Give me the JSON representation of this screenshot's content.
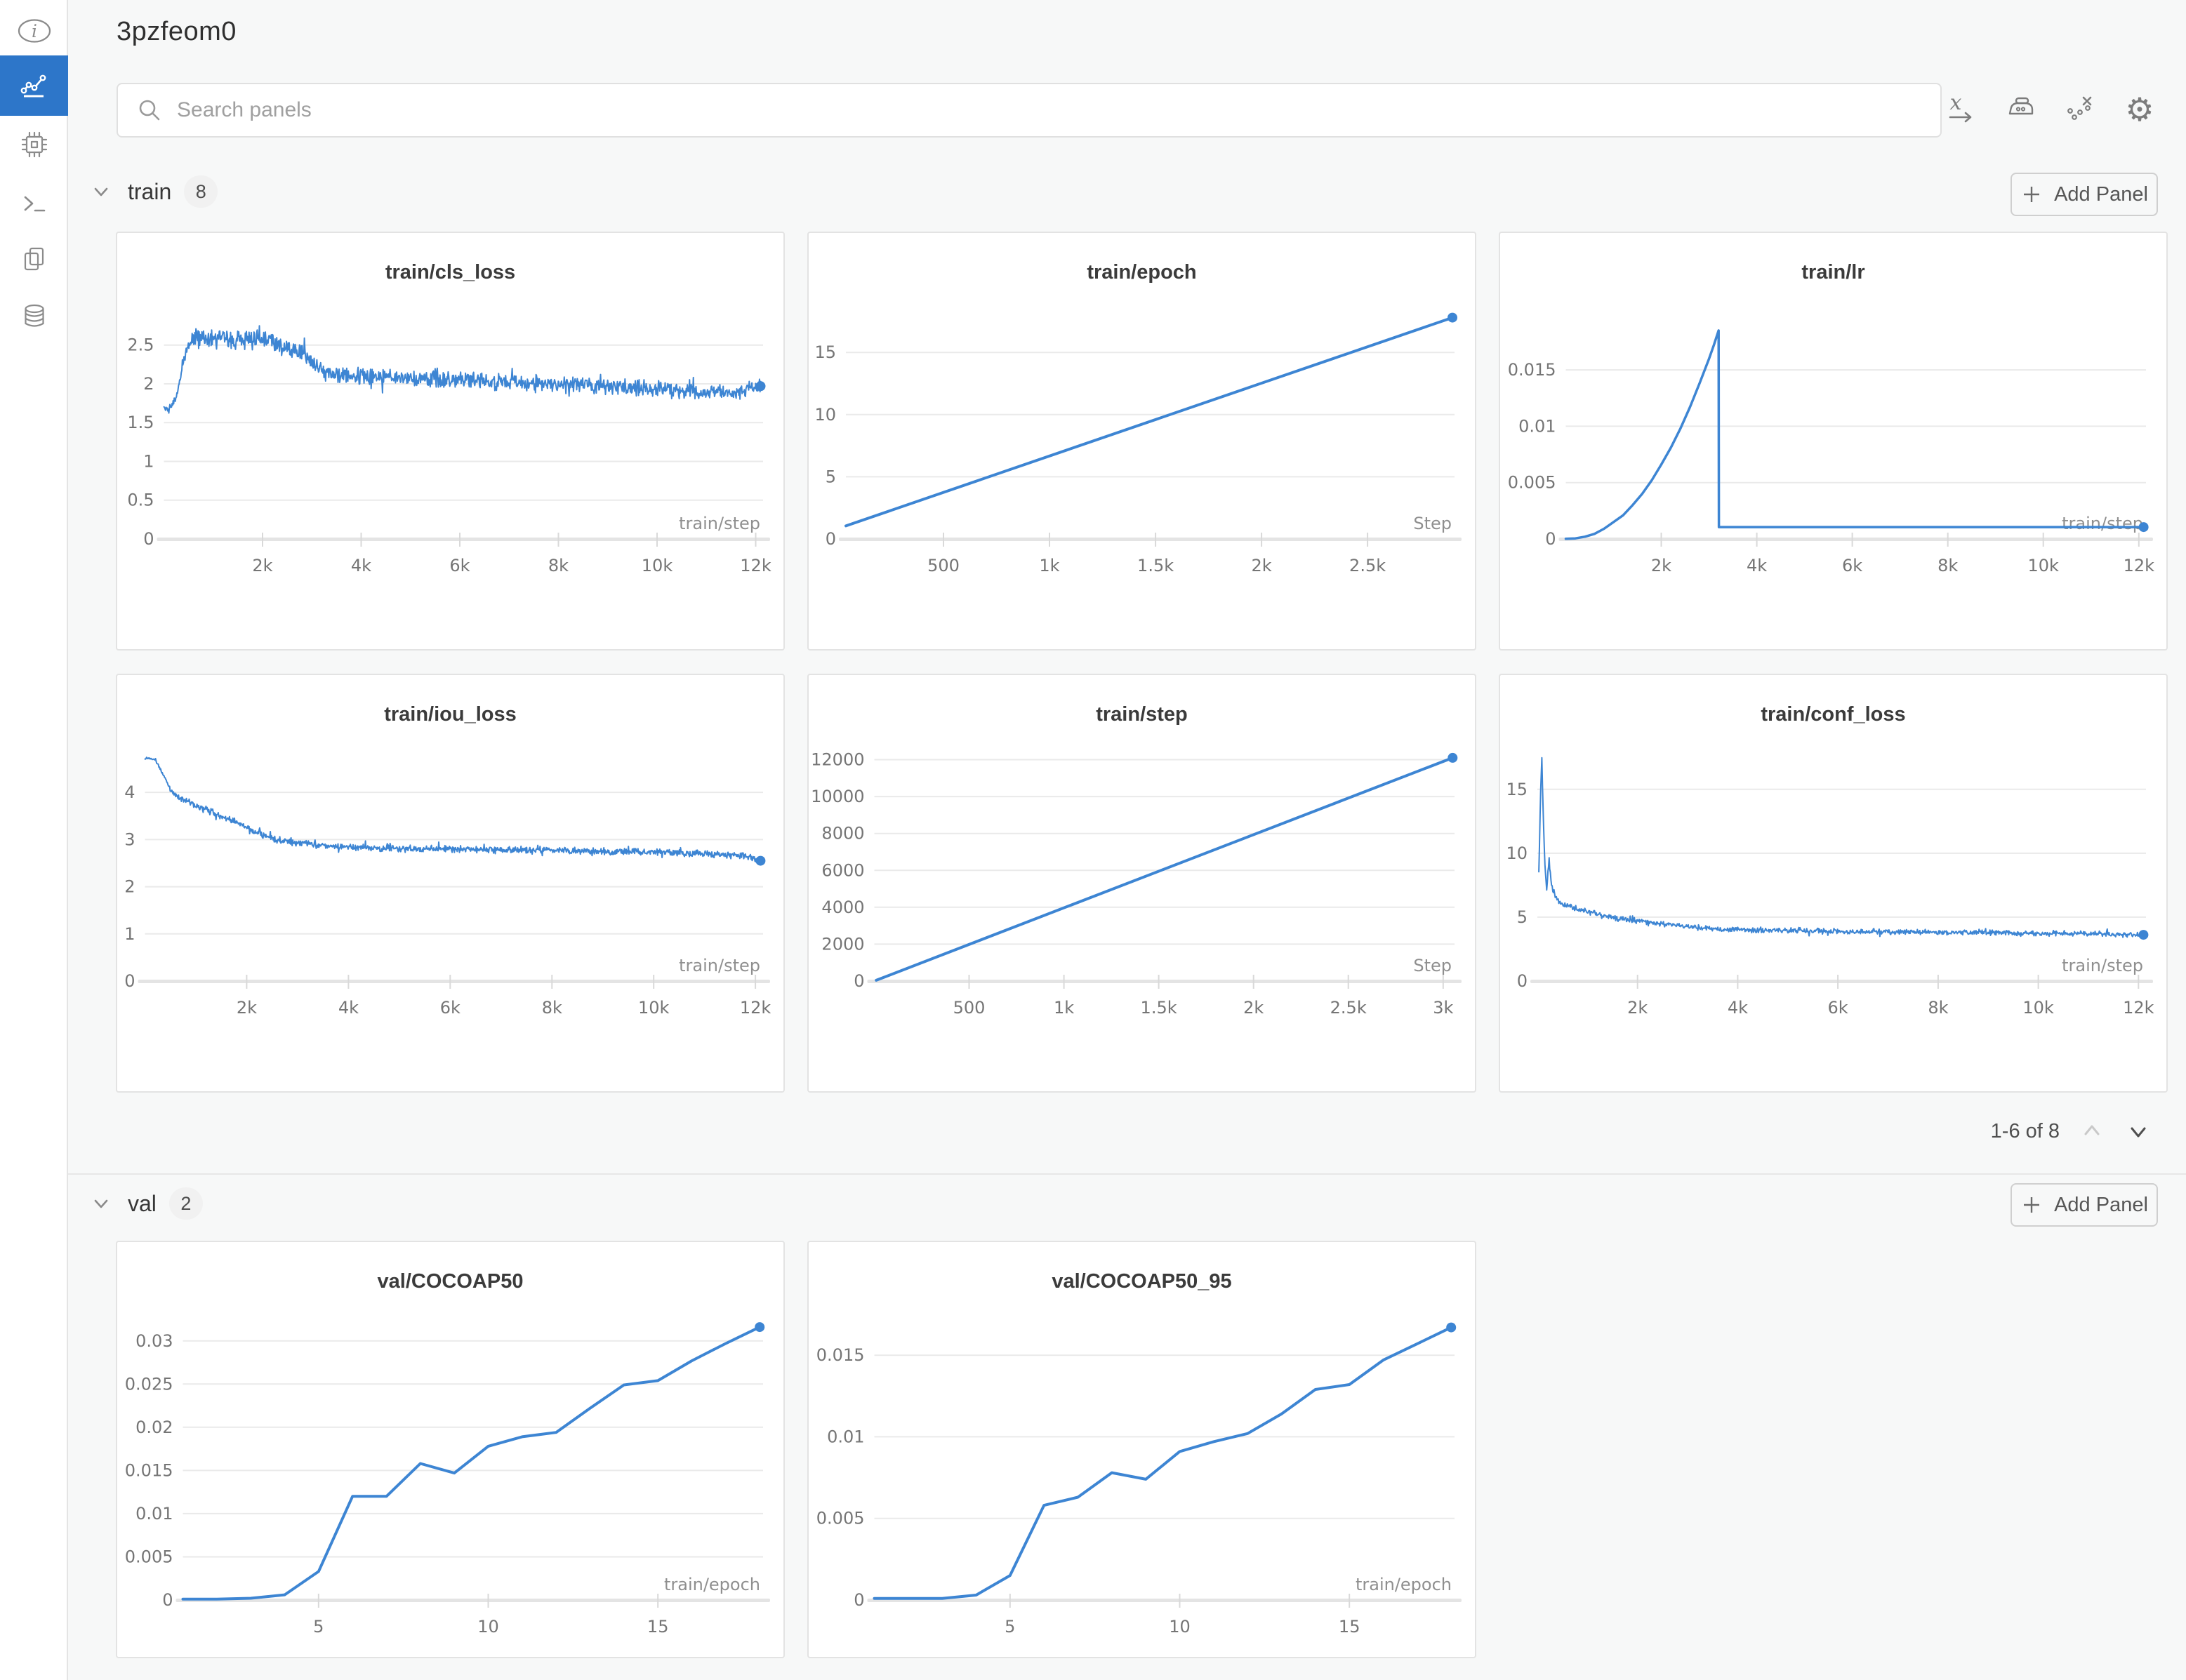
{
  "header": {
    "title": "3pzfeom0"
  },
  "search": {
    "placeholder": "Search panels"
  },
  "accent_color": "#3d85d3",
  "nav_blue": "#2d76c9",
  "toolbar": {
    "icons": [
      "x-axis-settings",
      "smoothing-iron",
      "outlier-removal",
      "settings-gear"
    ]
  },
  "sidebar": {
    "items": [
      {
        "name": "info"
      },
      {
        "name": "charts-workspace",
        "active": true
      },
      {
        "name": "system"
      },
      {
        "name": "logs"
      },
      {
        "name": "files"
      },
      {
        "name": "artifacts"
      }
    ]
  },
  "sections": [
    {
      "id": "train",
      "label": "train",
      "count": "8",
      "add_panel_label": "Add Panel",
      "pagination": "1-6 of 8",
      "panel_ids": "0,1,2,3,4,5"
    },
    {
      "id": "val",
      "label": "val",
      "count": "2",
      "add_panel_label": "Add Panel",
      "panel_ids": "6,7"
    }
  ],
  "chart_data": [
    {
      "type": "line",
      "title": "train/cls_loss",
      "xlabel": "train/step",
      "xlim": [
        0,
        12150
      ],
      "ylim": [
        0,
        2.95
      ],
      "grid": true,
      "legend": "none",
      "xticks": [
        {
          "v": 2000,
          "label": "2k"
        },
        {
          "v": 4000,
          "label": "4k"
        },
        {
          "v": 6000,
          "label": "6k"
        },
        {
          "v": 8000,
          "label": "8k"
        },
        {
          "v": 10000,
          "label": "10k"
        },
        {
          "v": 12000,
          "label": "12k"
        }
      ],
      "yticks": [
        {
          "v": 0,
          "label": "0"
        },
        {
          "v": 0.5,
          "label": "0.5"
        },
        {
          "v": 1,
          "label": "1"
        },
        {
          "v": 1.5,
          "label": "1.5"
        },
        {
          "v": 2,
          "label": "2"
        },
        {
          "v": 2.5,
          "label": "2.5"
        }
      ],
      "points": [
        [
          0,
          1.7
        ],
        [
          80,
          1.67
        ],
        [
          150,
          1.74
        ],
        [
          220,
          1.8
        ],
        [
          300,
          1.95
        ],
        [
          380,
          2.25
        ],
        [
          450,
          2.45
        ],
        [
          550,
          2.55
        ],
        [
          700,
          2.6
        ],
        [
          900,
          2.58
        ],
        [
          1100,
          2.6
        ],
        [
          1400,
          2.57
        ],
        [
          1700,
          2.6
        ],
        [
          2000,
          2.58
        ],
        [
          2200,
          2.55
        ],
        [
          2400,
          2.5
        ],
        [
          2600,
          2.45
        ],
        [
          2800,
          2.38
        ],
        [
          3000,
          2.28
        ],
        [
          3200,
          2.18
        ],
        [
          3400,
          2.12
        ],
        [
          3700,
          2.1
        ],
        [
          4200,
          2.1
        ],
        [
          5000,
          2.08
        ],
        [
          6000,
          2.05
        ],
        [
          7000,
          2.02
        ],
        [
          8000,
          2.0
        ],
        [
          9000,
          1.97
        ],
        [
          10000,
          1.93
        ],
        [
          10800,
          1.9
        ],
        [
          11500,
          1.88
        ],
        [
          12100,
          1.97
        ]
      ],
      "noise": 0.085,
      "noise_prof": [
        [
          0,
          0.4
        ],
        [
          350,
          0.7
        ],
        [
          800,
          1.05
        ],
        [
          2600,
          1.2
        ],
        [
          3400,
          1
        ],
        [
          12100,
          0.95
        ]
      ],
      "n_samples": 1100,
      "line_width": 2,
      "end_dot": true
    },
    {
      "type": "line",
      "title": "train/epoch",
      "xlabel": "Step",
      "xlim": [
        40,
        2910
      ],
      "ylim": [
        0,
        18.4
      ],
      "grid": true,
      "legend": "none",
      "xticks": [
        {
          "v": 500,
          "label": "500"
        },
        {
          "v": 1000,
          "label": "1k"
        },
        {
          "v": 1500,
          "label": "1.5k"
        },
        {
          "v": 2000,
          "label": "2k"
        },
        {
          "v": 2500,
          "label": "2.5k"
        }
      ],
      "yticks": [
        {
          "v": 0,
          "label": "0"
        },
        {
          "v": 5,
          "label": "5"
        },
        {
          "v": 10,
          "label": "10"
        },
        {
          "v": 15,
          "label": "15"
        }
      ],
      "points": [
        [
          40,
          1.05
        ],
        [
          2900,
          17.8
        ]
      ],
      "line_width": 4,
      "end_dot": true
    },
    {
      "type": "line",
      "title": "train/lr",
      "xlabel": "train/step",
      "xlim": [
        0,
        12150
      ],
      "ylim": [
        0,
        0.0203
      ],
      "grid": true,
      "legend": "none",
      "xticks": [
        {
          "v": 2000,
          "label": "2k"
        },
        {
          "v": 4000,
          "label": "4k"
        },
        {
          "v": 6000,
          "label": "6k"
        },
        {
          "v": 8000,
          "label": "8k"
        },
        {
          "v": 10000,
          "label": "10k"
        },
        {
          "v": 12000,
          "label": "12k"
        }
      ],
      "yticks": [
        {
          "v": 0,
          "label": "0"
        },
        {
          "v": 0.005,
          "label": "0.005"
        },
        {
          "v": 0.01,
          "label": "0.01"
        },
        {
          "v": 0.015,
          "label": "0.015"
        }
      ],
      "points": [
        [
          0,
          1e-05
        ],
        [
          200,
          5e-05
        ],
        [
          400,
          0.0002
        ],
        [
          600,
          0.00045
        ],
        [
          800,
          0.0009
        ],
        [
          1000,
          0.0015
        ],
        [
          1200,
          0.0021
        ],
        [
          1400,
          0.003
        ],
        [
          1600,
          0.004
        ],
        [
          1800,
          0.0052
        ],
        [
          2000,
          0.0066
        ],
        [
          2200,
          0.0081
        ],
        [
          2400,
          0.0098
        ],
        [
          2600,
          0.0117
        ],
        [
          2800,
          0.0138
        ],
        [
          3000,
          0.016
        ],
        [
          3100,
          0.0172
        ],
        [
          3200,
          0.0185
        ],
        [
          3206,
          0.00105
        ],
        [
          12100,
          0.00105
        ]
      ],
      "line_width": 3.5,
      "end_dot": true
    },
    {
      "type": "line",
      "title": "train/iou_loss",
      "xlabel": "train/step",
      "xlim": [
        0,
        12150
      ],
      "ylim": [
        0,
        4.85
      ],
      "grid": true,
      "legend": "none",
      "xticks": [
        {
          "v": 2000,
          "label": "2k"
        },
        {
          "v": 4000,
          "label": "4k"
        },
        {
          "v": 6000,
          "label": "6k"
        },
        {
          "v": 8000,
          "label": "8k"
        },
        {
          "v": 10000,
          "label": "10k"
        },
        {
          "v": 12000,
          "label": "12k"
        }
      ],
      "yticks": [
        {
          "v": 0,
          "label": "0"
        },
        {
          "v": 1,
          "label": "1"
        },
        {
          "v": 2,
          "label": "2"
        },
        {
          "v": 3,
          "label": "3"
        },
        {
          "v": 4,
          "label": "4"
        }
      ],
      "points": [
        [
          0,
          4.72
        ],
        [
          120,
          4.72
        ],
        [
          200,
          4.68
        ],
        [
          300,
          4.5
        ],
        [
          400,
          4.3
        ],
        [
          500,
          4.05
        ],
        [
          600,
          3.95
        ],
        [
          800,
          3.82
        ],
        [
          1000,
          3.72
        ],
        [
          1300,
          3.58
        ],
        [
          1600,
          3.45
        ],
        [
          1900,
          3.32
        ],
        [
          2200,
          3.15
        ],
        [
          2500,
          3.02
        ],
        [
          2800,
          2.95
        ],
        [
          3100,
          2.92
        ],
        [
          3400,
          2.88
        ],
        [
          3800,
          2.85
        ],
        [
          4300,
          2.83
        ],
        [
          5000,
          2.8
        ],
        [
          6000,
          2.8
        ],
        [
          7000,
          2.78
        ],
        [
          8000,
          2.78
        ],
        [
          9000,
          2.75
        ],
        [
          10000,
          2.73
        ],
        [
          11000,
          2.7
        ],
        [
          11800,
          2.65
        ],
        [
          12100,
          2.55
        ]
      ],
      "noise": 0.055,
      "noise_prof": [
        [
          0,
          0.25
        ],
        [
          250,
          0.55
        ],
        [
          600,
          1
        ],
        [
          12100,
          1
        ]
      ],
      "n_samples": 1100,
      "line_width": 2,
      "end_dot": true
    },
    {
      "type": "line",
      "title": "train/step",
      "xlabel": "Step",
      "xlim": [
        0,
        3060
      ],
      "ylim": [
        0,
        12400
      ],
      "grid": true,
      "legend": "none",
      "xticks": [
        {
          "v": 500,
          "label": "500"
        },
        {
          "v": 1000,
          "label": "1k"
        },
        {
          "v": 1500,
          "label": "1.5k"
        },
        {
          "v": 2000,
          "label": "2k"
        },
        {
          "v": 2500,
          "label": "2.5k"
        },
        {
          "v": 3000,
          "label": "3k"
        }
      ],
      "yticks": [
        {
          "v": 0,
          "label": "0"
        },
        {
          "v": 2000,
          "label": "2000"
        },
        {
          "v": 4000,
          "label": "4000"
        },
        {
          "v": 6000,
          "label": "6000"
        },
        {
          "v": 8000,
          "label": "8000"
        },
        {
          "v": 10000,
          "label": "10000"
        },
        {
          "v": 12000,
          "label": "12000"
        }
      ],
      "points": [
        [
          10,
          40
        ],
        [
          3050,
          12100
        ]
      ],
      "line_width": 4,
      "end_dot": true
    },
    {
      "type": "line",
      "title": "train/conf_loss",
      "xlabel": "train/step",
      "xlim": [
        0,
        12150
      ],
      "ylim": [
        0,
        17.9
      ],
      "grid": true,
      "legend": "none",
      "xticks": [
        {
          "v": 2000,
          "label": "2k"
        },
        {
          "v": 4000,
          "label": "4k"
        },
        {
          "v": 6000,
          "label": "6k"
        },
        {
          "v": 8000,
          "label": "8k"
        },
        {
          "v": 10000,
          "label": "10k"
        },
        {
          "v": 12000,
          "label": "12k"
        }
      ],
      "yticks": [
        {
          "v": 0,
          "label": "0"
        },
        {
          "v": 5,
          "label": "5"
        },
        {
          "v": 10,
          "label": "10"
        },
        {
          "v": 15,
          "label": "15"
        }
      ],
      "points": [
        [
          30,
          8.2
        ],
        [
          60,
          14.3
        ],
        [
          90,
          17.3
        ],
        [
          120,
          12.5
        ],
        [
          150,
          9.0
        ],
        [
          190,
          7.2
        ],
        [
          230,
          9.6
        ],
        [
          280,
          7.6
        ],
        [
          350,
          6.6
        ],
        [
          450,
          6.1
        ],
        [
          600,
          5.9
        ],
        [
          800,
          5.6
        ],
        [
          1000,
          5.4
        ],
        [
          1300,
          5.1
        ],
        [
          1600,
          4.9
        ],
        [
          2000,
          4.7
        ],
        [
          2500,
          4.45
        ],
        [
          3000,
          4.25
        ],
        [
          3500,
          4.1
        ],
        [
          4000,
          4.0
        ],
        [
          5000,
          3.95
        ],
        [
          6000,
          3.9
        ],
        [
          7000,
          3.85
        ],
        [
          8000,
          3.8
        ],
        [
          9000,
          3.78
        ],
        [
          10000,
          3.73
        ],
        [
          11000,
          3.7
        ],
        [
          12100,
          3.62
        ]
      ],
      "noise": 0.16,
      "noise_prof": [
        [
          30,
          1.7
        ],
        [
          300,
          1.45
        ],
        [
          1200,
          1.05
        ],
        [
          12100,
          0.95
        ]
      ],
      "n_samples": 1000,
      "line_width": 2,
      "end_dot": true
    },
    {
      "type": "line",
      "title": "val/COCOAP50",
      "xlabel": "train/epoch",
      "xlim": [
        1,
        18.1
      ],
      "ylim": [
        0,
        0.0325
      ],
      "grid": true,
      "legend": "none",
      "tall_plot": true,
      "xticks": [
        {
          "v": 5,
          "label": "5"
        },
        {
          "v": 10,
          "label": "10"
        },
        {
          "v": 15,
          "label": "15"
        }
      ],
      "yticks": [
        {
          "v": 0,
          "label": "0"
        },
        {
          "v": 0.005,
          "label": "0.005"
        },
        {
          "v": 0.01,
          "label": "0.01"
        },
        {
          "v": 0.015,
          "label": "0.015"
        },
        {
          "v": 0.02,
          "label": "0.02"
        },
        {
          "v": 0.025,
          "label": "0.025"
        },
        {
          "v": 0.03,
          "label": "0.03"
        }
      ],
      "points": [
        [
          1,
          0.0001
        ],
        [
          2,
          0.0001
        ],
        [
          3,
          0.0002
        ],
        [
          4,
          0.0006
        ],
        [
          5,
          0.0033
        ],
        [
          6,
          0.012
        ],
        [
          7,
          0.012
        ],
        [
          8,
          0.0158
        ],
        [
          9,
          0.0147
        ],
        [
          10,
          0.0178
        ],
        [
          11,
          0.0189
        ],
        [
          12,
          0.0194
        ],
        [
          13,
          0.0222
        ],
        [
          14,
          0.0249
        ],
        [
          15,
          0.0254
        ],
        [
          16,
          0.0277
        ],
        [
          17,
          0.0297
        ],
        [
          18,
          0.0316
        ]
      ],
      "line_width": 4,
      "end_dot": true
    },
    {
      "type": "line",
      "title": "val/COCOAP50_95",
      "xlabel": "train/epoch",
      "xlim": [
        1,
        18.1
      ],
      "ylim": [
        0,
        0.0172
      ],
      "grid": true,
      "legend": "none",
      "tall_plot": true,
      "xticks": [
        {
          "v": 5,
          "label": "5"
        },
        {
          "v": 10,
          "label": "10"
        },
        {
          "v": 15,
          "label": "15"
        }
      ],
      "yticks": [
        {
          "v": 0,
          "label": "0"
        },
        {
          "v": 0.005,
          "label": "0.005"
        },
        {
          "v": 0.01,
          "label": "0.01"
        },
        {
          "v": 0.015,
          "label": "0.015"
        }
      ],
      "points": [
        [
          1,
          0.0001
        ],
        [
          2,
          0.0001
        ],
        [
          3,
          0.0001
        ],
        [
          4,
          0.0003
        ],
        [
          5,
          0.0015
        ],
        [
          6,
          0.0058
        ],
        [
          7,
          0.0063
        ],
        [
          8,
          0.0078
        ],
        [
          9,
          0.0074
        ],
        [
          10,
          0.0091
        ],
        [
          11,
          0.0097
        ],
        [
          12,
          0.0102
        ],
        [
          13,
          0.0114
        ],
        [
          14,
          0.0129
        ],
        [
          15,
          0.0132
        ],
        [
          16,
          0.0147
        ],
        [
          17,
          0.0157
        ],
        [
          18,
          0.0167
        ]
      ],
      "line_width": 4,
      "end_dot": true
    }
  ]
}
